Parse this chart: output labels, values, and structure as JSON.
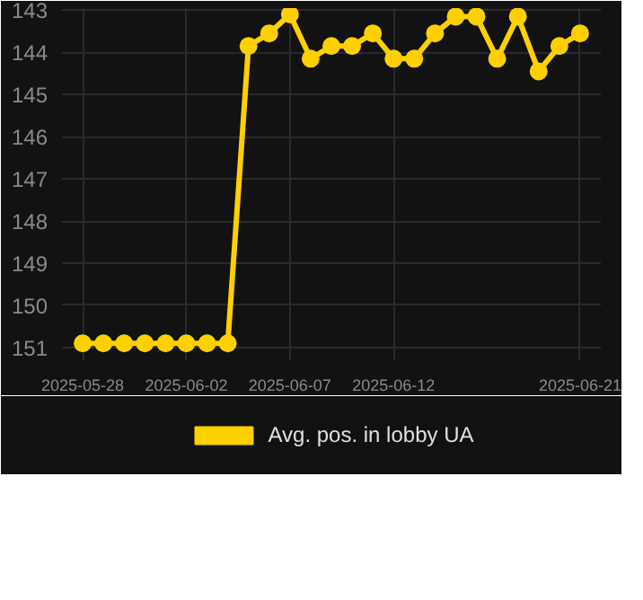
{
  "chart_data": {
    "type": "line",
    "x": [
      "2025-05-28",
      "2025-05-29",
      "2025-05-30",
      "2025-05-31",
      "2025-06-01",
      "2025-06-02",
      "2025-06-03",
      "2025-06-04",
      "2025-06-05",
      "2025-06-06",
      "2025-06-07",
      "2025-06-08",
      "2025-06-09",
      "2025-06-10",
      "2025-06-11",
      "2025-06-12",
      "2025-06-13",
      "2025-06-14",
      "2025-06-15",
      "2025-06-16",
      "2025-06-17",
      "2025-06-18",
      "2025-06-19",
      "2025-06-20",
      "2025-06-21"
    ],
    "series": [
      {
        "name": "Avg. pos. in lobby UA",
        "color": "#ffd000",
        "values": [
          150.9,
          150.9,
          150.9,
          150.9,
          150.9,
          150.9,
          150.9,
          150.9,
          143.85,
          143.55,
          143.1,
          144.15,
          143.85,
          143.85,
          143.55,
          144.15,
          144.15,
          143.55,
          143.15,
          143.15,
          144.15,
          143.15,
          144.45,
          143.85,
          143.55
        ]
      }
    ],
    "ylim": [
      151.3,
      142.95
    ],
    "yticks": [
      143,
      144,
      145,
      146,
      147,
      148,
      149,
      150,
      151
    ],
    "xlim": [
      "2025-05-27",
      "2025-06-22"
    ],
    "xticks": [
      "2025-05-28",
      "2025-06-02",
      "2025-06-07",
      "2025-06-12",
      "2025-06-21"
    ],
    "grid": true,
    "legend": "bottom",
    "marker": "circle",
    "line_style": "solid"
  }
}
